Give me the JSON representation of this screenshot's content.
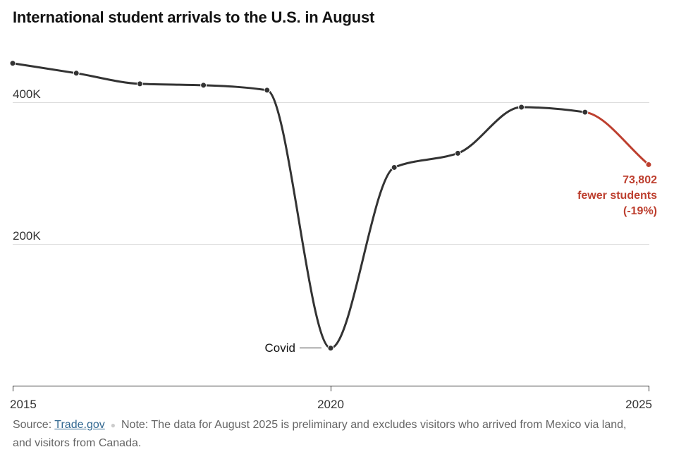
{
  "title": "International student arrivals to the U.S. in August",
  "colors": {
    "line": "#333333",
    "highlight": "#bd3f2f",
    "grid": "#dddddd"
  },
  "chart_data": {
    "type": "line",
    "title": "International student arrivals to the U.S. in August",
    "x": [
      2015,
      2016,
      2017,
      2018,
      2019,
      2020,
      2021,
      2022,
      2023,
      2024,
      2025
    ],
    "y": [
      455000,
      441000,
      426000,
      424000,
      417000,
      53000,
      308000,
      328000,
      393000,
      386000,
      312000
    ],
    "highlight_from_index": 9,
    "xlim": [
      2015,
      2025
    ],
    "ylim": [
      0,
      460000
    ],
    "x_ticks": [
      "2015",
      "2020",
      "2025"
    ],
    "y_ticks": [
      "400K",
      "200K"
    ],
    "grid": true,
    "annotations": {
      "covid_label": "Covid",
      "callout_line1": "73,802",
      "callout_line2": "fewer students",
      "callout_line3": "(-19%)"
    }
  },
  "footer": {
    "source_label": "Source:",
    "source_link": "Trade.gov",
    "note": "Note: The data for August 2025 is preliminary and excludes visitors who arrived from Mexico via land, and visitors from Canada."
  }
}
